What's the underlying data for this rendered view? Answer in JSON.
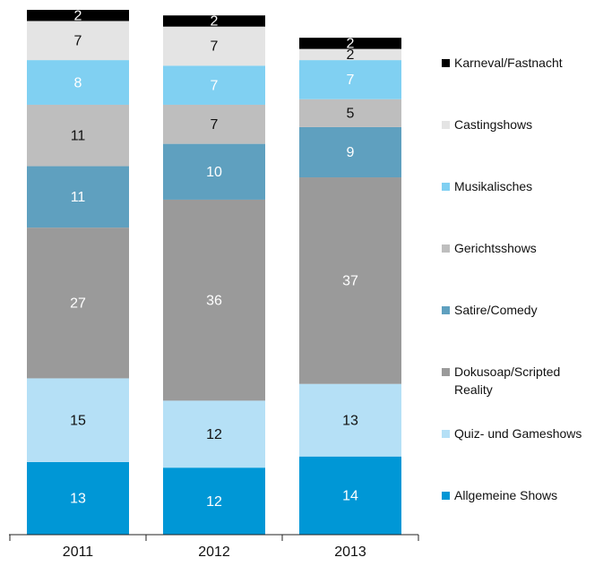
{
  "chart_data": {
    "type": "stacked_bar",
    "categories": [
      "2011",
      "2012",
      "2013"
    ],
    "series": [
      {
        "name": "Allgemeine Shows",
        "color": "#0097d6",
        "label_color": "#ffffff",
        "values": [
          13,
          12,
          14
        ]
      },
      {
        "name": "Quiz- und Gameshows",
        "color": "#b5e0f6",
        "label_color": "#111111",
        "values": [
          15,
          12,
          13
        ]
      },
      {
        "name": "Dokusoap/Scripted Reality",
        "color": "#9a9a9a",
        "label_color": "#ffffff",
        "values": [
          27,
          36,
          37
        ]
      },
      {
        "name": "Satire/Comedy",
        "color": "#5fa0bf",
        "label_color": "#ffffff",
        "values": [
          11,
          10,
          9
        ]
      },
      {
        "name": "Gerichtsshows",
        "color": "#bebebe",
        "label_color": "#111111",
        "values": [
          11,
          7,
          5
        ]
      },
      {
        "name": "Musikalisches",
        "color": "#80d0f2",
        "label_color": "#ffffff",
        "values": [
          8,
          7,
          7
        ]
      },
      {
        "name": "Castingshows",
        "color": "#e4e4e4",
        "label_color": "#111111",
        "values": [
          7,
          7,
          2
        ]
      },
      {
        "name": "Karneval/Fastnacht",
        "color": "#000000",
        "label_color": "#ffffff",
        "values": [
          2,
          2,
          2
        ]
      }
    ]
  }
}
